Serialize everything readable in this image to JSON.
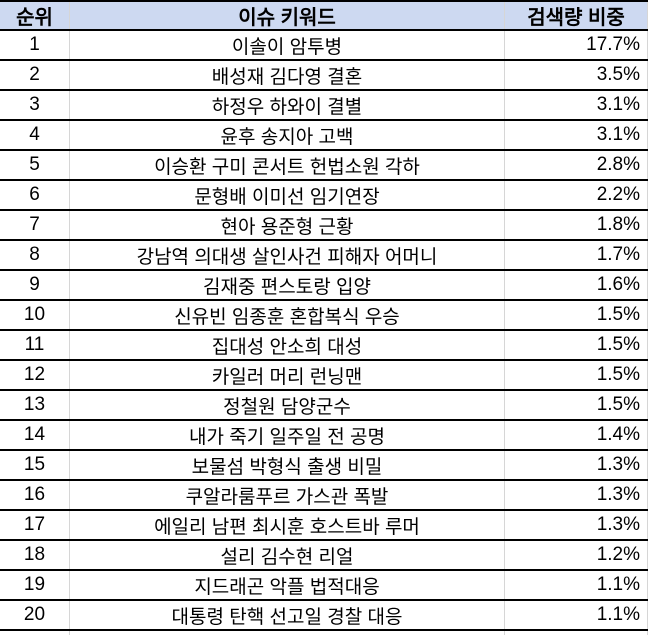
{
  "chart_data": {
    "type": "table",
    "columns": [
      "순위",
      "이슈 키워드",
      "검색량 비중"
    ],
    "column_keys": [
      "rank",
      "keyword",
      "share"
    ],
    "rows": [
      {
        "rank": "1",
        "keyword": "이솔이 암투병",
        "share": "17.7%",
        "share_pct": 17.7
      },
      {
        "rank": "2",
        "keyword": "배성재 김다영 결혼",
        "share": "3.5%",
        "share_pct": 3.5
      },
      {
        "rank": "3",
        "keyword": "하정우 하와이 결별",
        "share": "3.1%",
        "share_pct": 3.1
      },
      {
        "rank": "4",
        "keyword": "윤후 송지아 고백",
        "share": "3.1%",
        "share_pct": 3.1
      },
      {
        "rank": "5",
        "keyword": "이승환 구미 콘서트 헌법소원 각하",
        "share": "2.8%",
        "share_pct": 2.8
      },
      {
        "rank": "6",
        "keyword": "문형배 이미선 임기연장",
        "share": "2.2%",
        "share_pct": 2.2
      },
      {
        "rank": "7",
        "keyword": "현아 용준형 근황",
        "share": "1.8%",
        "share_pct": 1.8
      },
      {
        "rank": "8",
        "keyword": "강남역 의대생 살인사건 피해자 어머니",
        "share": "1.7%",
        "share_pct": 1.7
      },
      {
        "rank": "9",
        "keyword": "김재중 편스토랑 입양",
        "share": "1.6%",
        "share_pct": 1.6
      },
      {
        "rank": "10",
        "keyword": "신유빈 임종훈 혼합복식 우승",
        "share": "1.5%",
        "share_pct": 1.5
      },
      {
        "rank": "11",
        "keyword": "집대성 안소희 대성",
        "share": "1.5%",
        "share_pct": 1.5
      },
      {
        "rank": "12",
        "keyword": "카일러 머리 런닝맨",
        "share": "1.5%",
        "share_pct": 1.5
      },
      {
        "rank": "13",
        "keyword": "정철원 담양군수",
        "share": "1.5%",
        "share_pct": 1.5
      },
      {
        "rank": "14",
        "keyword": "내가 죽기 일주일 전 공명",
        "share": "1.4%",
        "share_pct": 1.4
      },
      {
        "rank": "15",
        "keyword": "보물섬 박형식 출생 비밀",
        "share": "1.3%",
        "share_pct": 1.3
      },
      {
        "rank": "16",
        "keyword": "쿠알라룸푸르 가스관 폭발",
        "share": "1.3%",
        "share_pct": 1.3
      },
      {
        "rank": "17",
        "keyword": "에일리 남편 최시훈 호스트바 루머",
        "share": "1.3%",
        "share_pct": 1.3
      },
      {
        "rank": "18",
        "keyword": "설리 김수현 리얼",
        "share": "1.2%",
        "share_pct": 1.2
      },
      {
        "rank": "19",
        "keyword": "지드래곤 악플 법적대응",
        "share": "1.1%",
        "share_pct": 1.1
      },
      {
        "rank": "20",
        "keyword": "대통령 탄핵 선고일 경찰 대응",
        "share": "1.1%",
        "share_pct": 1.1
      }
    ],
    "layout": {
      "grid": "on",
      "header_row": true,
      "share_alignment": "right",
      "keyword_alignment": "center"
    },
    "colors": {
      "header_bg": "#cdd9f1",
      "row_border": "#000000",
      "grid_line": "#d6d6d6",
      "text": "#000000"
    }
  }
}
